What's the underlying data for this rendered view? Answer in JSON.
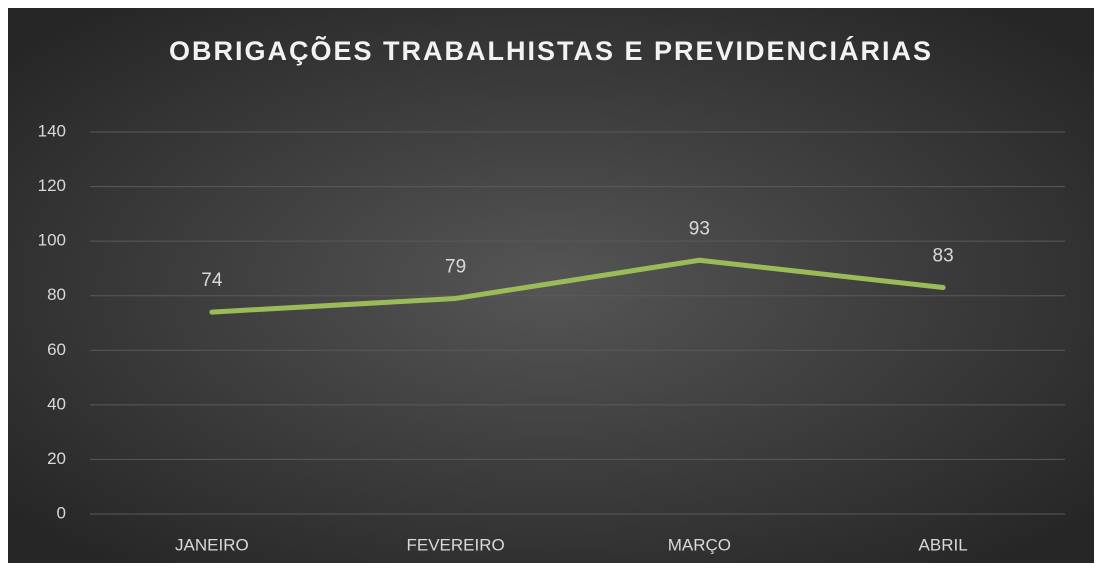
{
  "chart_data": {
    "type": "line",
    "title": "OBRIGAÇÕES TRABALHISTAS E PREVIDENCIÁRIAS",
    "categories": [
      "JANEIRO",
      "FEVEREIRO",
      "MARÇO",
      "ABRIL"
    ],
    "values": [
      74,
      79,
      93,
      83
    ],
    "color": "#9bbb59",
    "ylim": [
      0,
      140
    ],
    "yticks": [
      0,
      20,
      40,
      60,
      80,
      100,
      120,
      140
    ],
    "grid": true
  }
}
